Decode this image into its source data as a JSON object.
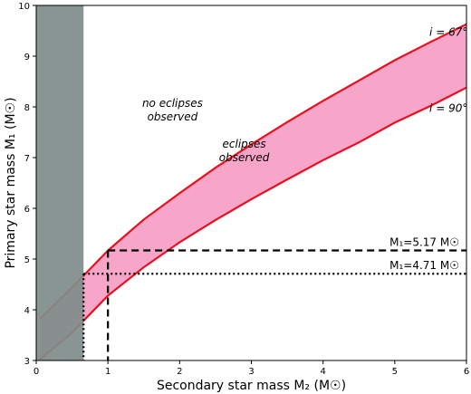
{
  "chart_data": {
    "type": "area",
    "xlabel": "Secondary star mass M₂ (M☉)",
    "ylabel": "Primary star mass M₁ (M☉)",
    "xlim": [
      0,
      6
    ],
    "ylim": [
      3,
      10
    ],
    "xticks": [
      "0",
      "1",
      "2",
      "3",
      "4",
      "5",
      "6"
    ],
    "yticks": [
      "3",
      "4",
      "5",
      "6",
      "7",
      "8",
      "9",
      "10"
    ],
    "grid": false,
    "series": [
      {
        "name": "i = 67°",
        "x": [
          0.05,
          0.5,
          1.0,
          1.5,
          2.0,
          2.5,
          3.0,
          3.5,
          4.0,
          4.5,
          5.0,
          5.5,
          6.0
        ],
        "y": [
          3.82,
          4.44,
          5.17,
          5.78,
          6.3,
          6.8,
          7.26,
          7.7,
          8.12,
          8.52,
          8.92,
          9.28,
          9.63
        ]
      },
      {
        "name": "i = 90°",
        "x": [
          0.05,
          0.5,
          1.0,
          1.5,
          2.0,
          2.5,
          3.0,
          3.5,
          4.0,
          4.5,
          5.0,
          5.5,
          6.0
        ],
        "y": [
          3.02,
          3.55,
          4.28,
          4.84,
          5.33,
          5.77,
          6.18,
          6.57,
          6.95,
          7.3,
          7.69,
          8.02,
          8.38
        ]
      }
    ],
    "excluded_region": {
      "x": [
        0,
        0.66
      ]
    },
    "reference_lines": [
      {
        "label": "M₁=5.17 M☉",
        "value": 5.17,
        "x_start": 1.0,
        "style": "dashed",
        "vline_x": 1.0
      },
      {
        "label": "M₁=4.71 M☉",
        "value": 4.71,
        "x_start": 0.66,
        "style": "dotted",
        "vline_x": 0.66
      }
    ],
    "annotations": [
      {
        "text": "no eclipses observed",
        "x": 1.9,
        "y": 8.0
      },
      {
        "text": "eclipses observed",
        "x": 2.9,
        "y": 7.2
      }
    ],
    "curve_labels": [
      {
        "text": "i = 67°",
        "x": 5.75,
        "y": 9.4
      },
      {
        "text": "i = 90°",
        "x": 5.75,
        "y": 7.9
      }
    ],
    "colors": {
      "curve": "#e8101e",
      "band": "#f7a6c9",
      "excluded": "#7f8c8a"
    }
  }
}
